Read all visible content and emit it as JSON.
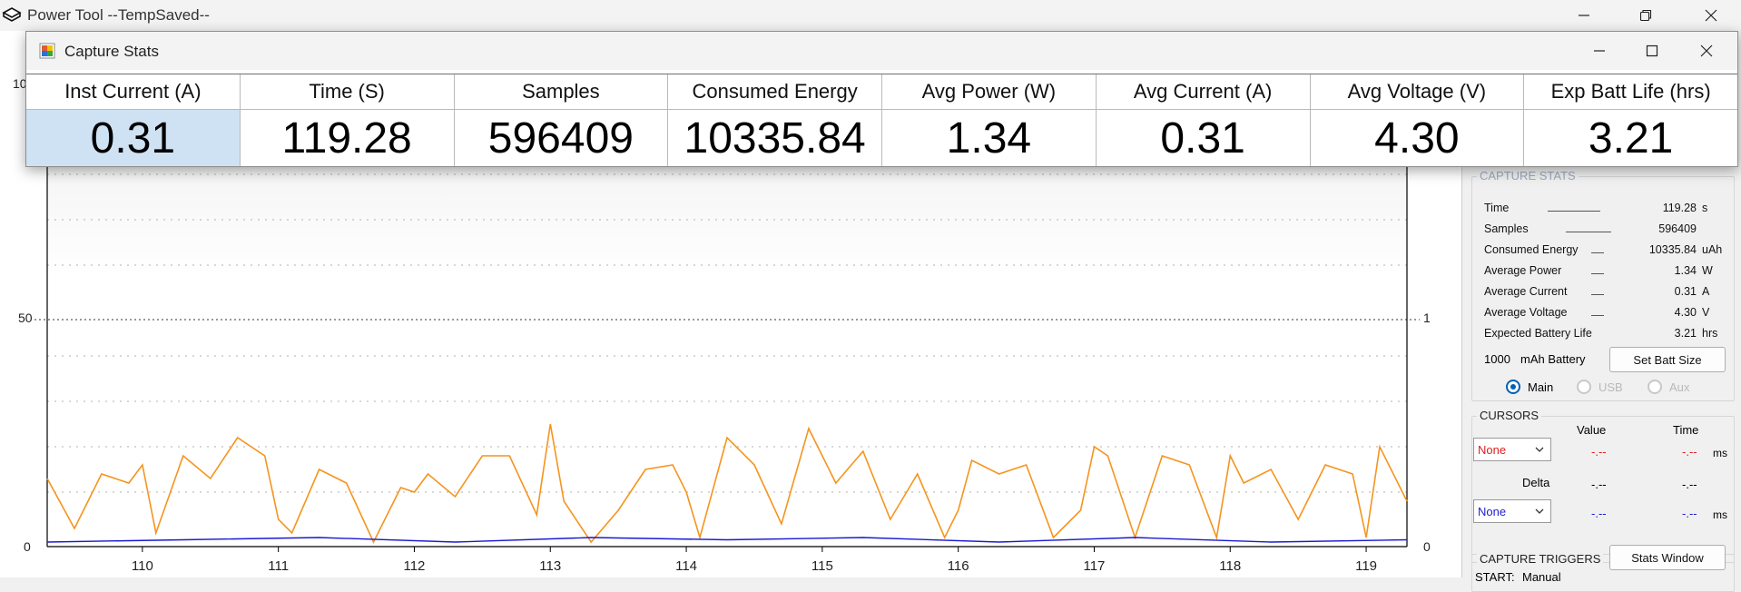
{
  "main_window": {
    "title": "Power Tool --TempSaved--"
  },
  "stats_window": {
    "title": "Capture Stats",
    "columns": [
      {
        "header": "Inst Current (A)",
        "value": "0.31"
      },
      {
        "header": "Time (S)",
        "value": "119.28"
      },
      {
        "header": "Samples",
        "value": "596409"
      },
      {
        "header": "Consumed Energy",
        "value": "10335.84"
      },
      {
        "header": "Avg Power (W)",
        "value": "1.34"
      },
      {
        "header": "Avg Current (A)",
        "value": "0.31"
      },
      {
        "header": "Avg Voltage (V)",
        "value": "4.30"
      },
      {
        "header": "Exp Batt Life (hrs)",
        "value": "3.21"
      }
    ]
  },
  "chart": {
    "left_axis_top_partial": "10",
    "left_mid": "50",
    "left_zero": "0",
    "right_mid": "1",
    "right_zero": "0",
    "x_ticks": [
      "110",
      "111",
      "112",
      "113",
      "114",
      "115",
      "116",
      "117",
      "118",
      "119"
    ],
    "colors": {
      "current": "#f5941e",
      "voltage": "#1a1ad0",
      "grid": "#b0b0b0"
    }
  },
  "chart_data": {
    "type": "line",
    "x_ticks": [
      110,
      111,
      112,
      113,
      114,
      115,
      116,
      117,
      118,
      119
    ],
    "xlim": [
      109.3,
      119.3
    ],
    "left_ticks": [
      0,
      50
    ],
    "right_ticks": [
      0,
      1
    ],
    "ylim_left": [
      0,
      100
    ],
    "grid": true,
    "series": [
      {
        "color": "#f5941e",
        "x": [
          109.3,
          109.5,
          109.7,
          109.9,
          110.0,
          110.1,
          110.3,
          110.5,
          110.7,
          110.9,
          111.0,
          111.1,
          111.3,
          111.5,
          111.7,
          111.9,
          112.0,
          112.1,
          112.3,
          112.5,
          112.7,
          112.9,
          113.0,
          113.1,
          113.3,
          113.5,
          113.7,
          113.9,
          114.0,
          114.1,
          114.3,
          114.5,
          114.7,
          114.9,
          115.0,
          115.1,
          115.3,
          115.5,
          115.7,
          115.9,
          116.0,
          116.1,
          116.3,
          116.5,
          116.7,
          116.9,
          117.0,
          117.1,
          117.3,
          117.5,
          117.7,
          117.9,
          118.0,
          118.1,
          118.3,
          118.5,
          118.7,
          118.9,
          119.0,
          119.1,
          119.3
        ],
        "values": [
          15,
          4,
          16,
          14,
          18,
          3,
          20,
          15,
          24,
          20,
          6,
          3,
          17,
          14,
          1,
          13,
          12,
          16,
          11,
          20,
          20,
          7,
          27,
          10,
          1,
          8,
          17,
          18,
          12,
          2,
          24,
          18,
          5,
          26,
          20,
          14,
          21,
          6,
          16,
          2,
          8,
          19,
          16,
          18,
          2,
          8,
          22,
          20,
          2,
          20,
          18,
          2,
          20,
          14,
          17,
          6,
          18,
          16,
          2,
          22,
          10
        ]
      },
      {
        "color": "#1a1ad0",
        "x": [
          109.3,
          110.3,
          111.3,
          112.3,
          113.3,
          114.3,
          115.3,
          116.3,
          117.3,
          118.3,
          119.3
        ],
        "values": [
          1,
          1.5,
          2,
          1,
          2,
          1.5,
          2,
          1,
          2,
          1,
          1.5
        ]
      }
    ]
  },
  "capture_stats_panel": {
    "title": "CAPTURE STATS",
    "rows": [
      {
        "label": "Time",
        "value": "119.28",
        "unit": "s"
      },
      {
        "label": "Samples",
        "value": "596409",
        "unit": ""
      },
      {
        "label": "Consumed Energy",
        "value": "10335.84",
        "unit": "uAh"
      },
      {
        "label": "Average Power",
        "value": "1.34",
        "unit": "W"
      },
      {
        "label": "Average Current",
        "value": "0.31",
        "unit": "A"
      },
      {
        "label": "Average Voltage",
        "value": "4.30",
        "unit": "V"
      },
      {
        "label": "Expected Battery Life",
        "value": "3.21",
        "unit": "hrs"
      }
    ],
    "battery_value": "1000",
    "battery_label": "mAh Battery",
    "set_batt_button": "Set Batt Size",
    "radios": [
      {
        "label": "Main",
        "selected": true,
        "enabled": true
      },
      {
        "label": "USB",
        "selected": false,
        "enabled": false
      },
      {
        "label": "Aux",
        "selected": false,
        "enabled": false
      }
    ]
  },
  "cursors_panel": {
    "title": "CURSORS",
    "value_header": "Value",
    "time_header": "Time",
    "delta_label": "Delta",
    "cursor1": {
      "select": "None",
      "value": "-.--",
      "time": "-.--",
      "unit": "ms",
      "color": "#e02020"
    },
    "delta": {
      "value": "-.--",
      "time": "-.--"
    },
    "cursor2": {
      "select": "None",
      "value": "-.--",
      "time": "-.--",
      "unit": "ms",
      "color": "#2020d0"
    }
  },
  "triggers_panel": {
    "title": "CAPTURE TRIGGERS",
    "stats_window_button": "Stats Window",
    "start_label": "START:",
    "start_value": "Manual"
  }
}
